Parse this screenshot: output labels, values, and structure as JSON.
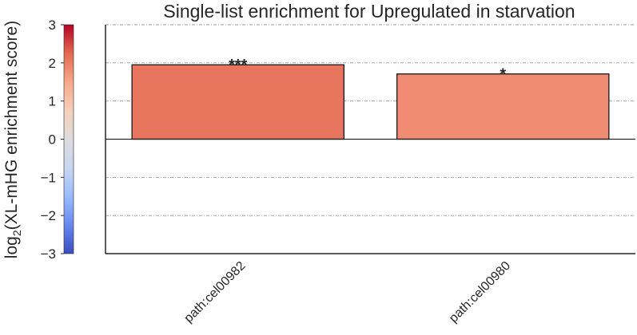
{
  "chart_data": {
    "type": "bar",
    "title": "Single-list enrichment for Upregulated in starvation",
    "xlabel": "",
    "ylabel_main": "log",
    "ylabel_sub": "2",
    "ylabel_rest": "(XL-mHG enrichment score)",
    "ylim": [
      -3,
      3
    ],
    "yticks": [
      "3",
      "2",
      "1",
      "0",
      "−1",
      "−2",
      "−3"
    ],
    "ytick_values": [
      3,
      2,
      1,
      0,
      -1,
      -2,
      -3
    ],
    "categories": [
      "path:cel00982",
      "path:cel00980"
    ],
    "values": [
      1.95,
      1.71
    ],
    "significance": [
      "***",
      "*"
    ],
    "bar_colors": [
      "#e8765f",
      "#f08c72"
    ],
    "grid": true,
    "colorbar": {
      "cmap": "coolwarm",
      "range": [
        -3,
        3
      ],
      "colors": [
        "#3b4cc0",
        "#6788ee",
        "#9abbff",
        "#c9d7f0",
        "#dddcdc",
        "#f6cfbb",
        "#f7a889",
        "#e26952",
        "#b40426"
      ]
    }
  }
}
